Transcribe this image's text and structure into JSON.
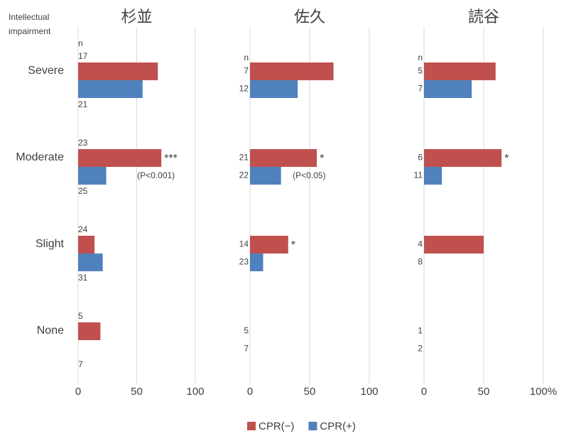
{
  "chart_data": {
    "type": "bar",
    "orientation": "horizontal",
    "ylabel": [
      "Intellectual",
      "impairment"
    ],
    "categories": [
      "Severe",
      "Moderate",
      "Slight",
      "None"
    ],
    "legend": [
      {
        "name": "CPR(−)",
        "color": "#c0504d"
      },
      {
        "name": "CPR(+)",
        "color": "#4f81bd"
      }
    ],
    "grid": true,
    "panels": [
      {
        "title": "杉並",
        "n_label": "n",
        "xlim": [
          0,
          100
        ],
        "xticks": [
          0,
          50,
          100
        ],
        "series": [
          {
            "values": [
              68,
              71,
              14,
              19
            ],
            "n": [
              17,
              23,
              24,
              5
            ]
          },
          {
            "values": [
              55,
              24,
              21,
              0
            ],
            "n": [
              21,
              25,
              31,
              7
            ]
          }
        ],
        "stars": [
          null,
          "***",
          null,
          null
        ],
        "p_labels": [
          null,
          "(P<0.001)",
          null,
          null
        ]
      },
      {
        "title": "佐久",
        "n_label": "n",
        "xlim": [
          0,
          100
        ],
        "xticks": [
          0,
          50,
          100
        ],
        "series": [
          {
            "values": [
              70,
              56,
              32,
              0
            ],
            "n": [
              7,
              21,
              14,
              5
            ]
          },
          {
            "values": [
              40,
              26,
              11,
              0
            ],
            "n": [
              12,
              22,
              23,
              7
            ]
          }
        ],
        "stars": [
          null,
          "*",
          "*",
          null
        ],
        "p_labels": [
          null,
          "(P<0.05)",
          null,
          null
        ]
      },
      {
        "title": "読谷",
        "n_label": "n",
        "xlim": [
          0,
          100
        ],
        "xticks": [
          0,
          50,
          {
            "value": 100,
            "label": "100%"
          }
        ],
        "series": [
          {
            "values": [
              60,
              65,
              50,
              0
            ],
            "n": [
              5,
              6,
              4,
              1
            ]
          },
          {
            "values": [
              40,
              15,
              0,
              0
            ],
            "n": [
              7,
              11,
              8,
              2
            ]
          }
        ],
        "stars": [
          null,
          "*",
          null,
          null
        ],
        "p_labels": [
          null,
          null,
          null,
          null
        ]
      }
    ]
  }
}
